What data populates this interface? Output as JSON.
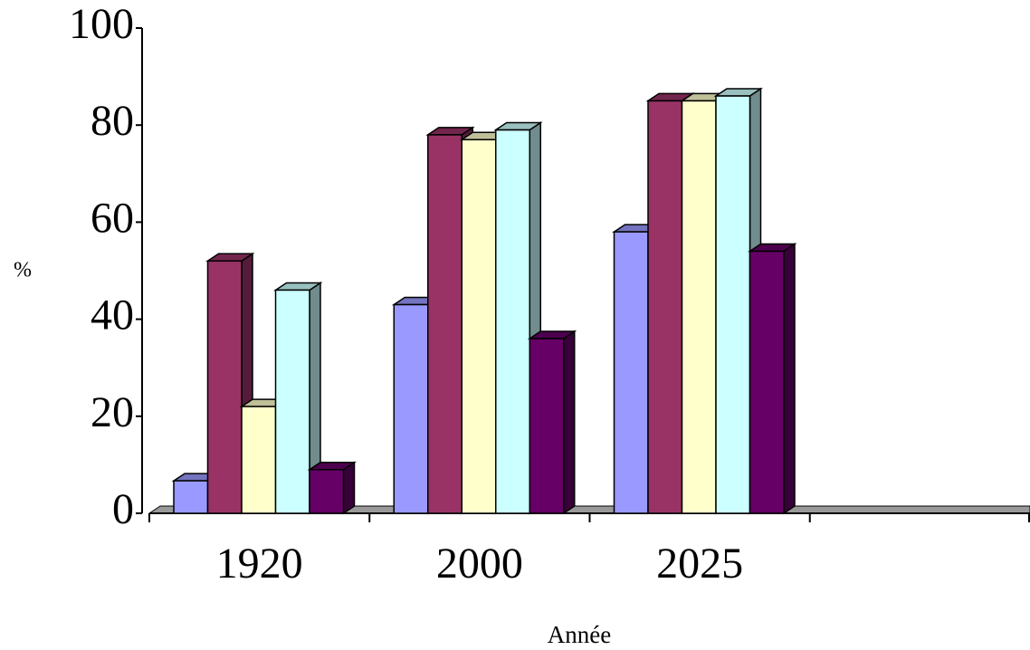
{
  "chart_data": {
    "type": "bar3d",
    "x_label": "Année",
    "y_label": "%",
    "categories": [
      "1920",
      "2000",
      "2025",
      null
    ],
    "series": [
      {
        "color": "#9999ff",
        "values": [
          6.7,
          43,
          58,
          null
        ]
      },
      {
        "color": "#993366",
        "values": [
          52,
          78,
          85,
          null
        ]
      },
      {
        "color": "#ffffcc",
        "values": [
          22,
          77,
          85,
          null
        ]
      },
      {
        "color": "#ccffff",
        "values": [
          46,
          79,
          86,
          null
        ]
      },
      {
        "color": "#660066",
        "values": [
          9,
          36,
          54,
          null
        ]
      }
    ],
    "ylim": [
      0,
      100
    ],
    "yticks": [
      0,
      20,
      40,
      60,
      80,
      100
    ],
    "grid": false
  }
}
